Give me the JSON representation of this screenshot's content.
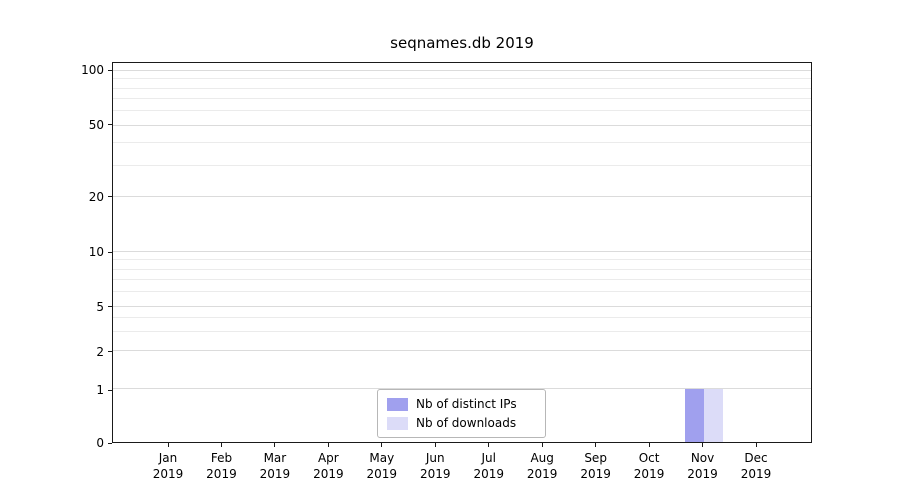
{
  "title": "seqnames.db 2019",
  "chart_data": {
    "type": "bar",
    "title": "seqnames.db 2019",
    "xlabel": "",
    "ylabel": "",
    "yscale": "symlog",
    "ylim": [
      0,
      110
    ],
    "yticks": [
      0,
      1,
      2,
      5,
      10,
      20,
      50,
      100
    ],
    "minor_grid_values": [
      3,
      4,
      6,
      7,
      8,
      9,
      30,
      40,
      60,
      70,
      80,
      90
    ],
    "grid": "horizontal",
    "categories": [
      {
        "month": "Jan",
        "year": "2019"
      },
      {
        "month": "Feb",
        "year": "2019"
      },
      {
        "month": "Mar",
        "year": "2019"
      },
      {
        "month": "Apr",
        "year": "2019"
      },
      {
        "month": "May",
        "year": "2019"
      },
      {
        "month": "Jun",
        "year": "2019"
      },
      {
        "month": "Jul",
        "year": "2019"
      },
      {
        "month": "Aug",
        "year": "2019"
      },
      {
        "month": "Sep",
        "year": "2019"
      },
      {
        "month": "Oct",
        "year": "2019"
      },
      {
        "month": "Nov",
        "year": "2019"
      },
      {
        "month": "Dec",
        "year": "2019"
      }
    ],
    "series": [
      {
        "name": "Nb of distinct IPs",
        "color": "#a0a0ee",
        "values": [
          0,
          0,
          0,
          0,
          0,
          0,
          0,
          0,
          0,
          0,
          1,
          0
        ]
      },
      {
        "name": "Nb of downloads",
        "color": "#dcdcf8",
        "values": [
          0,
          0,
          0,
          0,
          0,
          0,
          0,
          0,
          0,
          0,
          1,
          0
        ]
      }
    ],
    "legend": {
      "position": "lower center",
      "entries": [
        "Nb of distinct IPs",
        "Nb of downloads"
      ]
    }
  },
  "colors": {
    "axis": "#1a1a1a",
    "grid_major": "#dbdbdb",
    "grid_minor": "#ebebeb",
    "background": "#ffffff"
  }
}
